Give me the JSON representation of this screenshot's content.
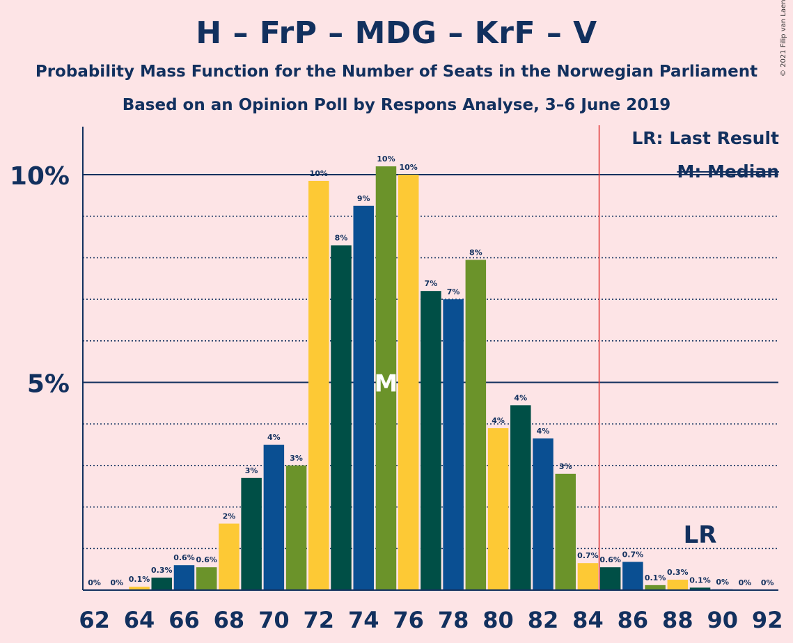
{
  "chart_data": {
    "type": "bar",
    "title": "H – FrP – MDG – KrF – V",
    "subtitle": "Probability Mass Function for the Number of Seats in the Norwegian Parliament",
    "subtitle2": "Based on an Opinion Poll by Respons Analyse, 3–6 June 2019",
    "copyright": "© 2021 Filip van Laenen",
    "legend": {
      "last_result": "LR: Last Result",
      "median": "M: Median"
    },
    "x": [
      62,
      63,
      64,
      65,
      66,
      67,
      68,
      69,
      70,
      71,
      72,
      73,
      74,
      75,
      76,
      77,
      78,
      79,
      80,
      81,
      82,
      83,
      84,
      85,
      86,
      87,
      88,
      89,
      90,
      91,
      92
    ],
    "values": [
      0,
      0,
      0.08,
      0.3,
      0.6,
      0.55,
      1.6,
      2.7,
      3.5,
      3.0,
      9.85,
      8.3,
      9.25,
      10.2,
      10.0,
      7.2,
      7.0,
      7.95,
      3.9,
      4.45,
      3.65,
      2.8,
      0.65,
      0.55,
      0.68,
      0.12,
      0.25,
      0.06,
      0.02,
      0,
      0
    ],
    "labels": [
      "0%",
      "0%",
      "0.1%",
      "0.3%",
      "0.6%",
      "0.6%",
      "2%",
      "3%",
      "4%",
      "3%",
      "10%",
      "8%",
      "9%",
      "10%",
      "10%",
      "7%",
      "7%",
      "8%",
      "4%",
      "4%",
      "4%",
      "3%",
      "0.7%",
      "0.6%",
      "0.7%",
      "0.1%",
      "0.3%",
      "0.1%",
      "0%",
      "0%",
      "0%"
    ],
    "x_tick_labels": [
      "62",
      "64",
      "66",
      "68",
      "70",
      "72",
      "74",
      "76",
      "78",
      "80",
      "82",
      "84",
      "86",
      "88",
      "90",
      "92"
    ],
    "y_tick_labels": [
      "5%",
      "10%"
    ],
    "ylim": [
      0,
      11
    ],
    "median_seat": 75,
    "median_label": "M",
    "last_result_seat": 84.5,
    "last_result_label": "LR",
    "last_result_label_seat": 89,
    "grid": true,
    "colors": {
      "background": "#fde4e6",
      "text": "#12305e",
      "cycle": [
        "#0a4f92",
        "#6b932a",
        "#fdc935",
        "#004f46"
      ],
      "threshold_line": "#e03030"
    }
  }
}
